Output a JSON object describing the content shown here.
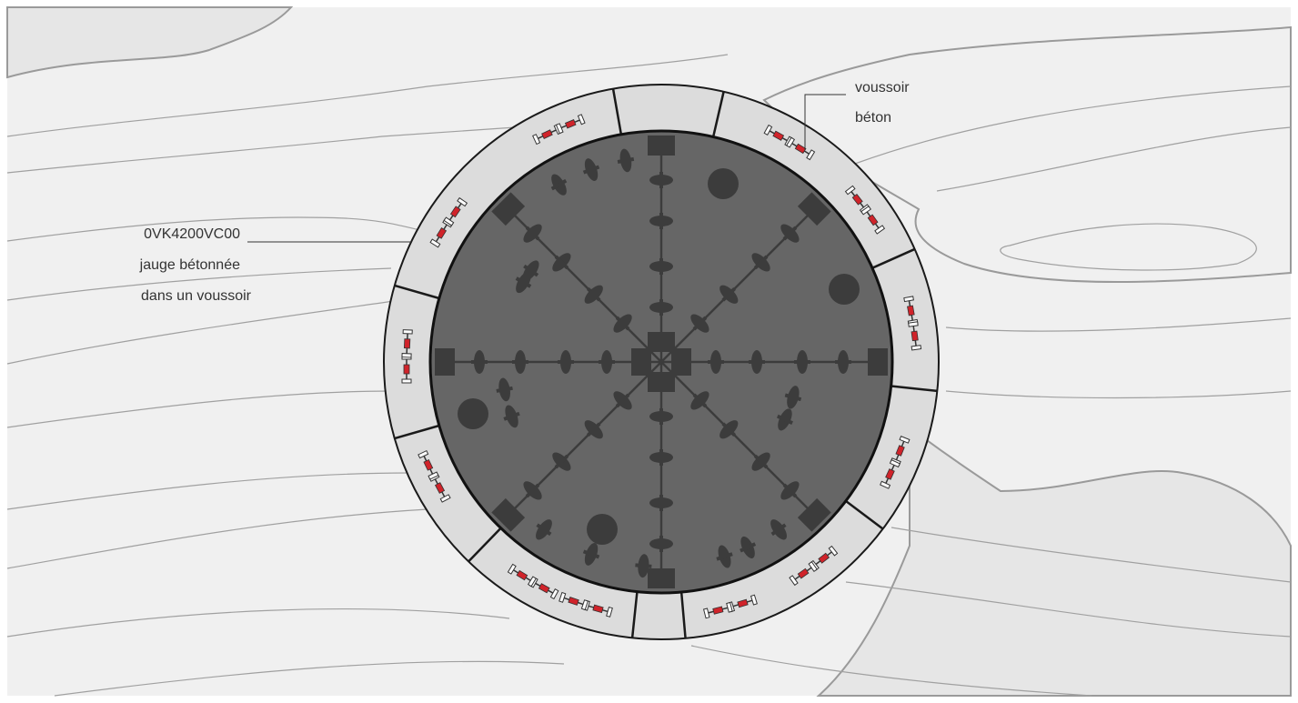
{
  "labels": {
    "gauge_line1": "0VK4200VC00",
    "gauge_line2": "jauge bétonnée",
    "gauge_line3": "dans un voussoir",
    "segment_line1": "voussoir",
    "segment_line2": "béton"
  },
  "colors": {
    "background": "#ffffff",
    "terrain_fill": "#f0f0f0",
    "terrain_dark": "#e6e6e6",
    "terrain_line": "#9a9a9a",
    "segment_fill": "#dcdcdc",
    "face_fill": "#666666",
    "tool": "#3c3c3c",
    "gauge_red": "#d0232a",
    "outline": "#1a1a1a"
  },
  "icons": {
    "gauge": "strain-gauge-icon",
    "cutter": "disc-cutter-icon",
    "scraper": "scraper-icon",
    "opening": "muck-opening-icon"
  }
}
